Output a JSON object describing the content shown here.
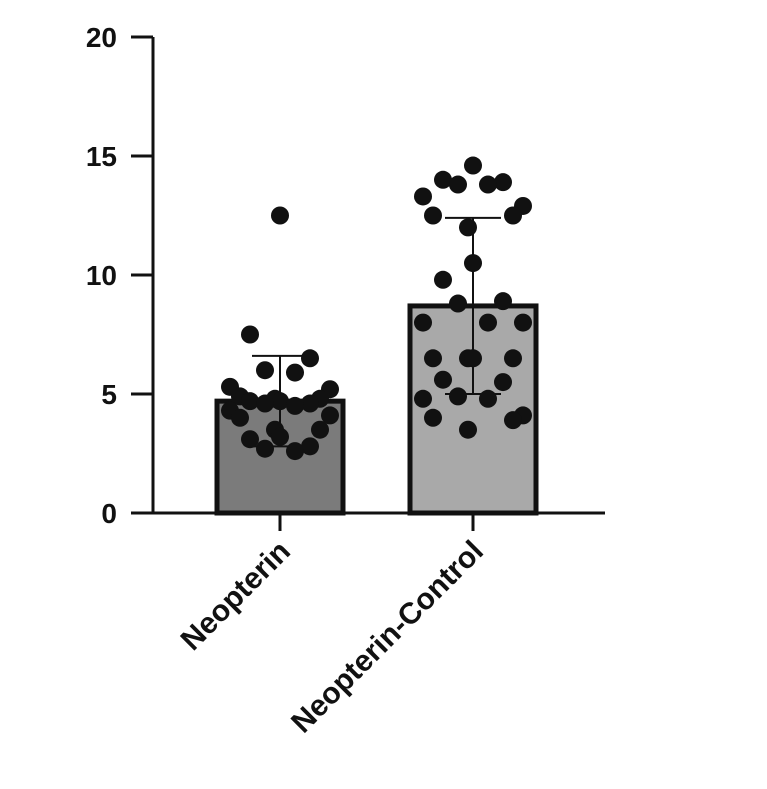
{
  "chart_data": {
    "type": "bar",
    "categories": [
      "Neopterin",
      "Neopterin-Control"
    ],
    "values": [
      4.7,
      8.7
    ],
    "errors": [
      1.9,
      3.7
    ],
    "colors": [
      "#7b7b7b",
      "#a9a9a9"
    ],
    "points": [
      [
        12.5,
        7.5,
        6.5,
        6.0,
        5.9,
        5.3,
        5.2,
        4.9,
        4.8,
        4.8,
        4.7,
        4.7,
        4.6,
        4.6,
        4.5,
        4.3,
        4.1,
        4.0,
        3.5,
        3.5,
        3.2,
        3.1,
        2.8,
        2.7,
        2.6
      ],
      [
        14.6,
        14.0,
        13.9,
        13.8,
        13.8,
        13.3,
        12.9,
        12.5,
        12.5,
        12.0,
        10.5,
        9.8,
        8.9,
        8.8,
        8.0,
        8.0,
        8.0,
        6.5,
        6.5,
        6.5,
        6.5,
        5.6,
        5.5,
        4.9,
        4.8,
        4.8,
        4.1,
        4.0,
        3.9,
        3.5
      ]
    ],
    "ylim": [
      0,
      20
    ],
    "yticks": [
      0,
      5,
      10,
      15,
      20
    ]
  }
}
